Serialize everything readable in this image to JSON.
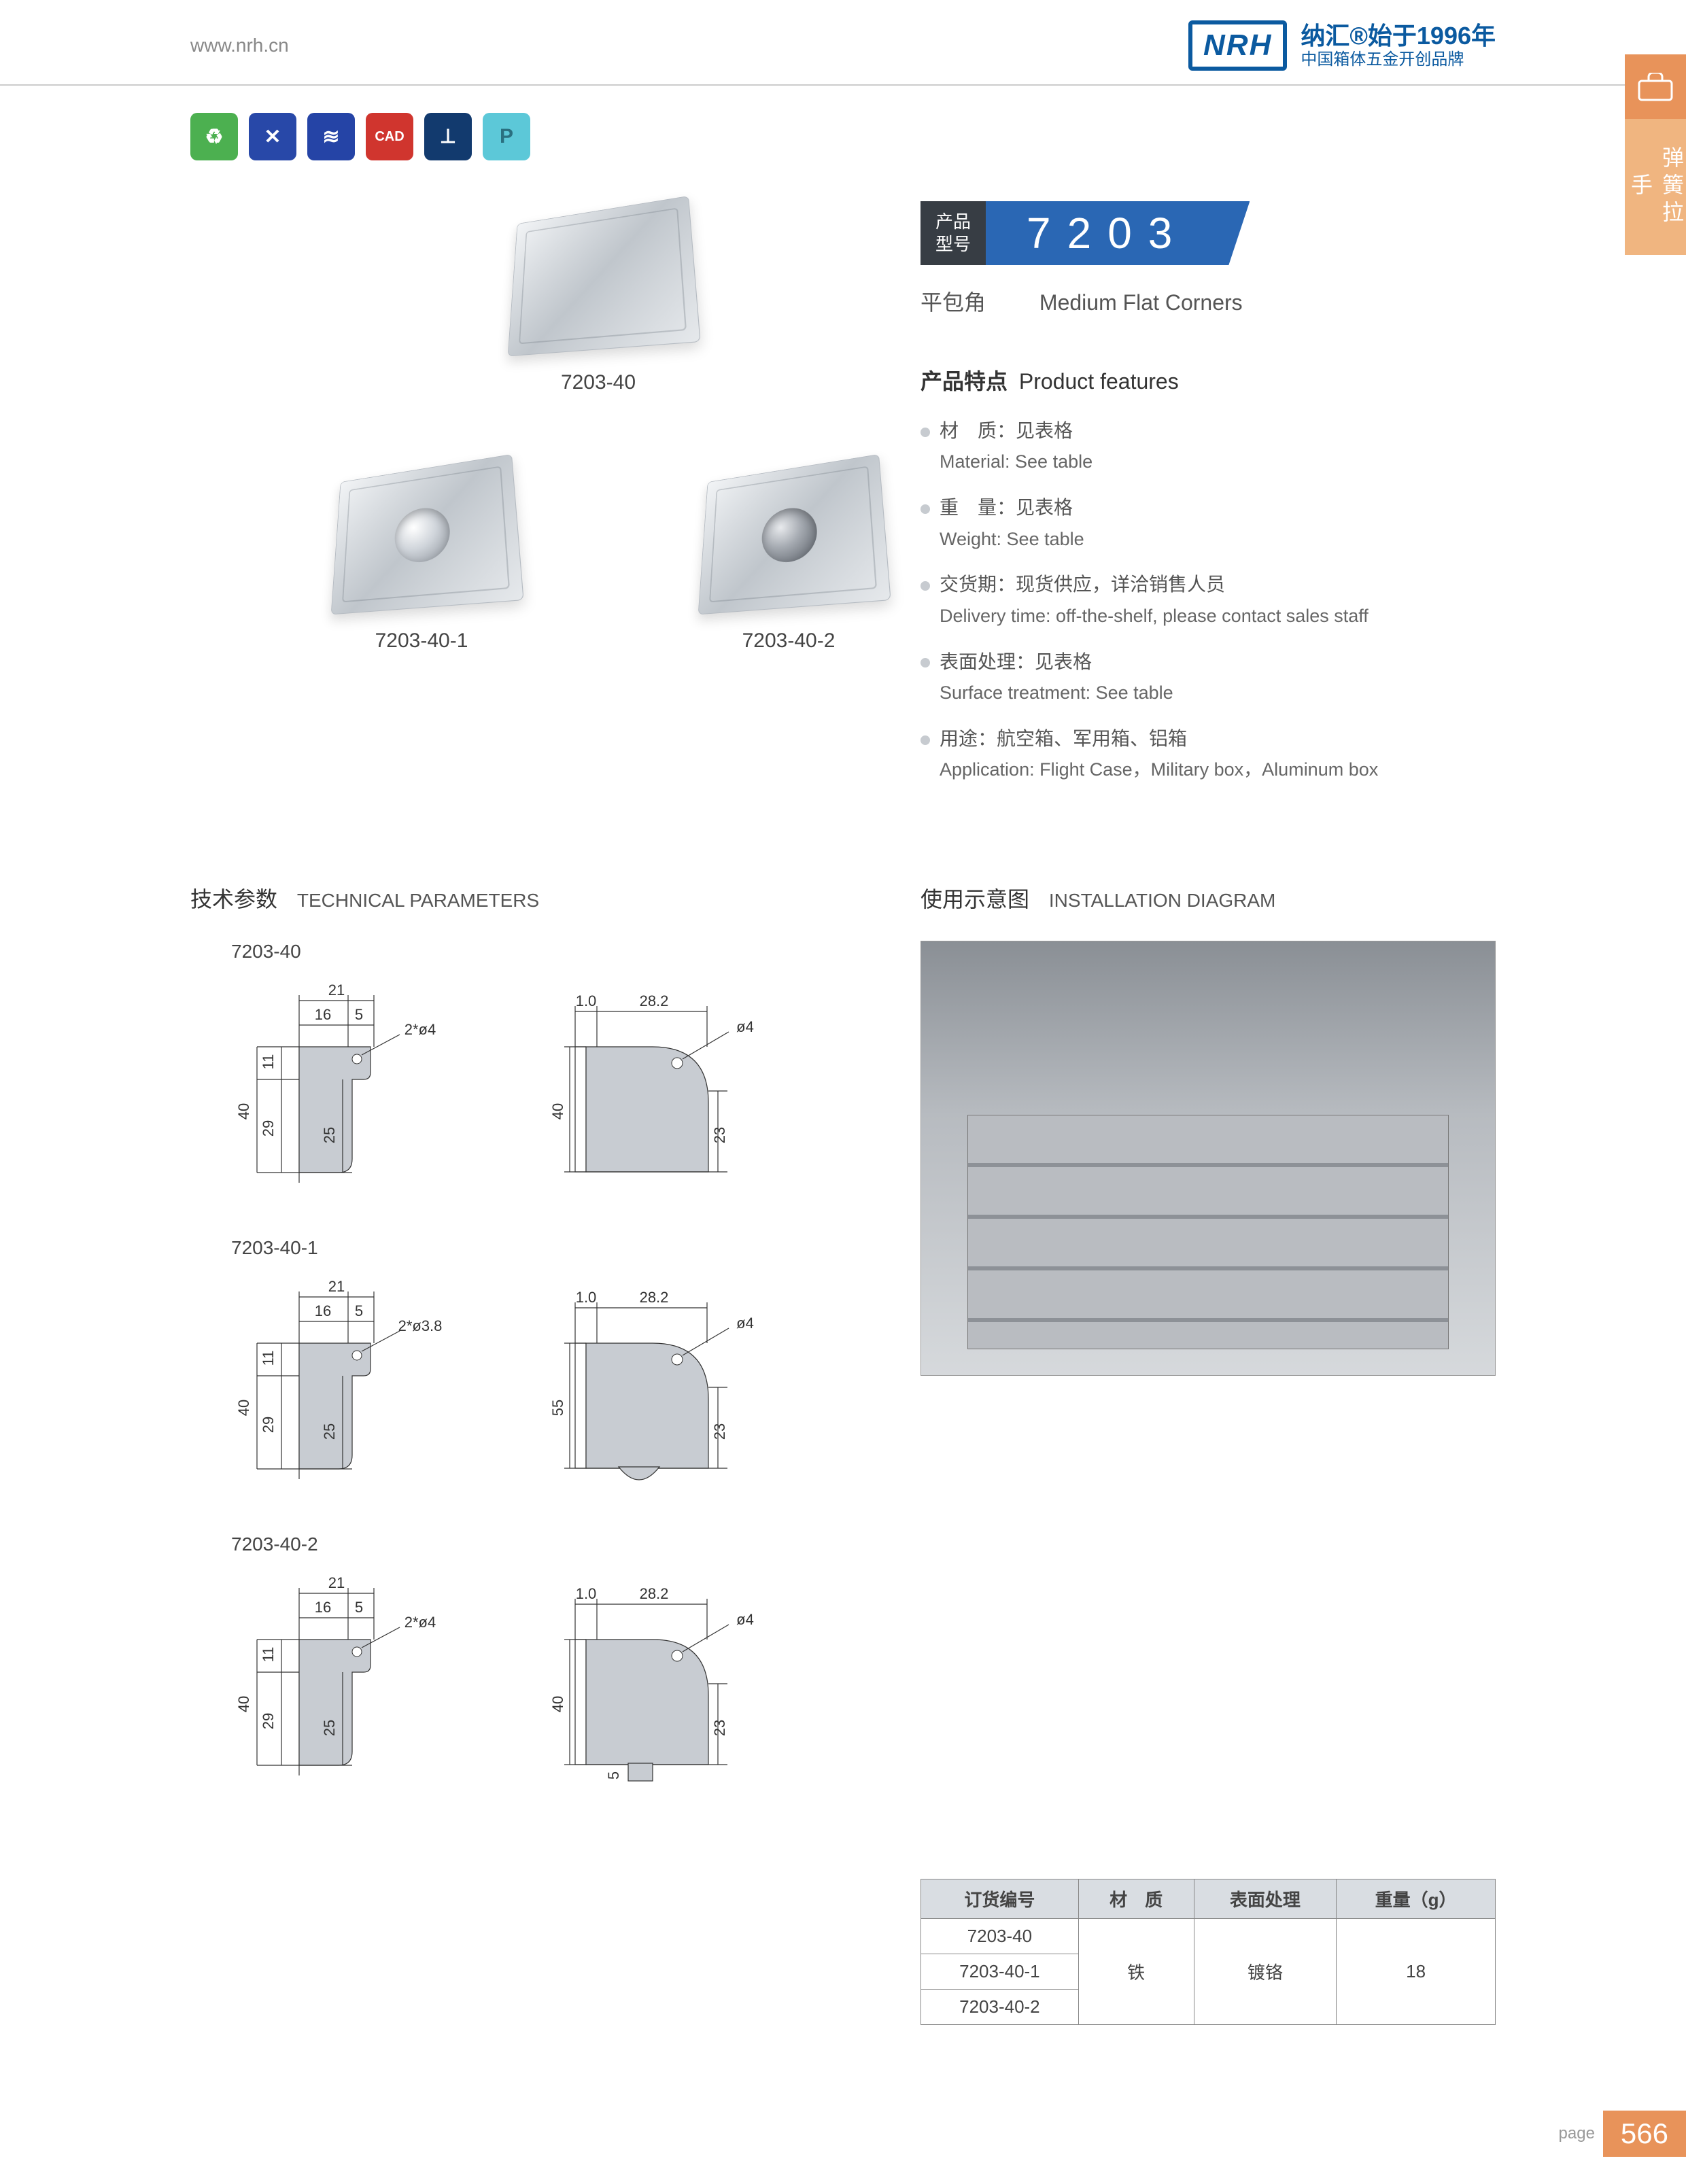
{
  "header": {
    "url": "www.nrh.cn",
    "logo_abbr": "NRH",
    "logo_line1": "纳汇®始于1996年",
    "logo_line2": "中国箱体五金开创品牌"
  },
  "side": {
    "label": "弹簧拉手"
  },
  "icons": {
    "eco": "♻",
    "tools": "✕",
    "spring": "≋",
    "cad": "CAD",
    "screw": "⟂",
    "p": "P"
  },
  "products": {
    "p1": "7203-40",
    "p2": "7203-40-1",
    "p3": "7203-40-2"
  },
  "model": {
    "tag_cn1": "产品",
    "tag_cn2": "型号",
    "number": "7203",
    "name_cn": "平包角",
    "name_en": "Medium Flat Corners"
  },
  "features": {
    "title_cn": "产品特点",
    "title_en": "Product features",
    "items": [
      {
        "cn": "材　质：见表格",
        "en": "Material: See table"
      },
      {
        "cn": "重　量：见表格",
        "en": "Weight: See table"
      },
      {
        "cn": "交货期：现货供应，详洽销售人员",
        "en": "Delivery time: off-the-shelf, please contact sales staff"
      },
      {
        "cn": "表面处理：见表格",
        "en": "Surface treatment:  See table"
      },
      {
        "cn": "用途：航空箱、军用箱、铝箱",
        "en": "Application: Flight Case，Military box，Aluminum box"
      }
    ]
  },
  "tech": {
    "title_cn": "技术参数",
    "title_en": "TECHNICAL PARAMETERS",
    "d1": {
      "label": "7203-40",
      "w": "21",
      "w1": "16",
      "w2": "5",
      "h": "40",
      "h1": "11",
      "h2": "29",
      "h3": "25",
      "hole": "2*ø4",
      "r_w": "28.2",
      "r_t": "1.0",
      "r_h": "40",
      "r_h2": "23",
      "r_hole": "ø4"
    },
    "d2": {
      "label": "7203-40-1",
      "w": "21",
      "w1": "16",
      "w2": "5",
      "h": "40",
      "h1": "11",
      "h2": "29",
      "h3": "25",
      "hole": "2*ø3.8",
      "r_w": "28.2",
      "r_t": "1.0",
      "r_h": "55",
      "r_h2": "23",
      "r_hole": "ø4"
    },
    "d3": {
      "label": "7203-40-2",
      "w": "21",
      "w1": "16",
      "w2": "5",
      "h": "40",
      "h1": "11",
      "h2": "29",
      "h3": "25",
      "hole": "2*ø4",
      "r_w": "28.2",
      "r_t": "1.0",
      "r_h": "40",
      "r_h2": "23",
      "r_hole": "ø4",
      "r_b": "5"
    }
  },
  "install": {
    "title_cn": "使用示意图",
    "title_en": "INSTALLATION DIAGRAM"
  },
  "table": {
    "headers": [
      "订货编号",
      "材　质",
      "表面处理",
      "重量（g）"
    ],
    "rows": [
      "7203-40",
      "7203-40-1",
      "7203-40-2"
    ],
    "material": "铁",
    "surface": "镀铬",
    "weight": "18"
  },
  "page": {
    "label": "page",
    "number": "566"
  }
}
